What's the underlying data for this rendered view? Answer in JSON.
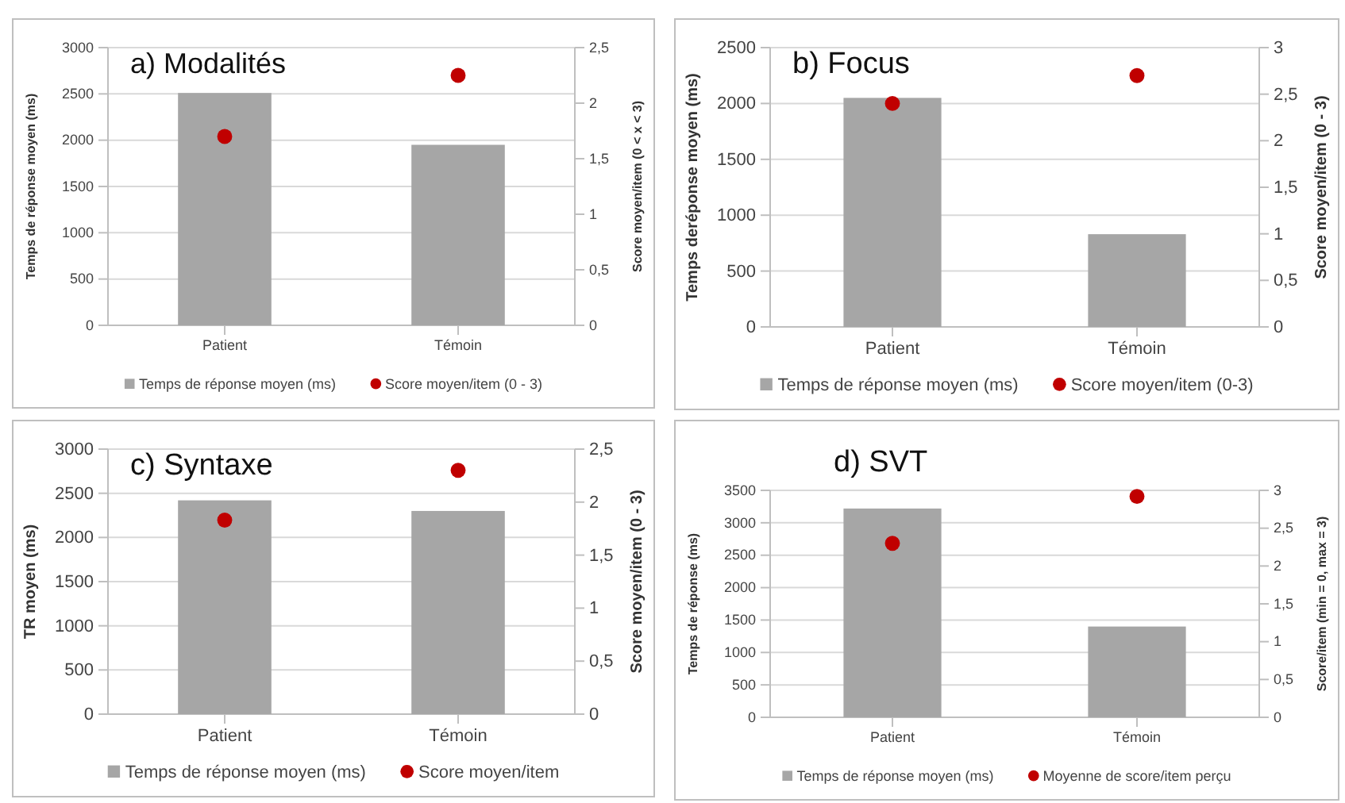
{
  "chart_data": [
    {
      "type": "bar",
      "title": "a) Modalités",
      "ylabel": "Temps de réponse moyen (ms)",
      "y2label": "Score moyen/item (0 < x < 3)",
      "categories": [
        "Patient",
        "Témoin"
      ],
      "series": [
        {
          "name": "Temps de réponse moyen (ms)",
          "color": "#a6a6a6",
          "values": [
            2510,
            1950
          ]
        },
        {
          "name": "Score moyen/item (0 - 3)",
          "type": "scatter",
          "axis": "y2",
          "color": "#c00000",
          "values": [
            1.7,
            2.25
          ]
        }
      ],
      "ylim": [
        0,
        3000
      ],
      "yticks": [
        0,
        500,
        1000,
        1500,
        2000,
        2500,
        3000
      ],
      "y2lim": [
        0,
        2.5
      ],
      "y2ticks": [
        0,
        {
          "value": 0.5,
          "label": "0,5"
        },
        1,
        {
          "value": 1.5,
          "label": "1,5"
        },
        2,
        {
          "value": 2.5,
          "label": "2,5"
        }
      ],
      "grid": "y",
      "legend": "bottom",
      "marker": "circle"
    },
    {
      "type": "bar",
      "title": "b) Focus",
      "ylabel": "Temps deréponse moyen (ms)",
      "y2label": "Score moyen/item (0 - 3)",
      "categories": [
        "Patient",
        "Témoin"
      ],
      "series": [
        {
          "name": "Temps de réponse moyen (ms)",
          "color": "#a6a6a6",
          "values": [
            2050,
            830
          ]
        },
        {
          "name": "Score moyen/item (0-3)",
          "type": "scatter",
          "axis": "y2",
          "color": "#c00000",
          "values": [
            2.4,
            2.7
          ]
        }
      ],
      "ylim": [
        0,
        2500
      ],
      "yticks": [
        0,
        500,
        1000,
        1500,
        2000,
        2500
      ],
      "y2lim": [
        0,
        3
      ],
      "y2ticks": [
        0,
        {
          "value": 0.5,
          "label": "0,5"
        },
        1,
        {
          "value": 1.5,
          "label": "1,5"
        },
        2,
        {
          "value": 2.5,
          "label": "2,5"
        },
        3
      ],
      "grid": "y",
      "legend": "bottom",
      "marker": "circle"
    },
    {
      "type": "bar",
      "title": "c) Syntaxe",
      "ylabel": "TR moyen (ms)",
      "y2label": "Score moyen/item (0 - 3)",
      "categories": [
        "Patient",
        "Témoin"
      ],
      "series": [
        {
          "name": "Temps de réponse moyen (ms)",
          "color": "#a6a6a6",
          "values": [
            2420,
            2300
          ]
        },
        {
          "name": "Score moyen/item",
          "type": "scatter",
          "axis": "y2",
          "color": "#c00000",
          "values": [
            1.83,
            2.3
          ]
        }
      ],
      "ylim": [
        0,
        3000
      ],
      "yticks": [
        0,
        500,
        1000,
        1500,
        2000,
        2500,
        3000
      ],
      "y2lim": [
        0,
        2.5
      ],
      "y2ticks": [
        0,
        {
          "value": 0.5,
          "label": "0,5"
        },
        1,
        {
          "value": 1.5,
          "label": "1,5"
        },
        2,
        {
          "value": 2.5,
          "label": "2,5"
        }
      ],
      "grid": "y",
      "legend": "bottom",
      "marker": "circle"
    },
    {
      "type": "bar",
      "title": "d) SVT",
      "ylabel": "Temps de réponse (ms)",
      "y2label": "Score/item (min = 0, max = 3)",
      "categories": [
        "Patient",
        "Témoin"
      ],
      "series": [
        {
          "name": "Temps de réponse moyen (ms)",
          "color": "#a6a6a6",
          "values": [
            3220,
            1400
          ]
        },
        {
          "name": "Moyenne de score/item perçu",
          "type": "scatter",
          "axis": "y2",
          "color": "#c00000",
          "values": [
            2.3,
            2.92
          ]
        }
      ],
      "ylim": [
        0,
        3500
      ],
      "yticks": [
        0,
        500,
        1000,
        1500,
        2000,
        2500,
        3000,
        3500
      ],
      "y2lim": [
        0,
        3
      ],
      "y2ticks": [
        0,
        {
          "value": 0.5,
          "label": "0,5"
        },
        1,
        {
          "value": 1.5,
          "label": "1,5"
        },
        2,
        {
          "value": 2.5,
          "label": "2,5"
        },
        3
      ],
      "grid": "y",
      "legend": "bottom",
      "marker": "circle"
    }
  ]
}
